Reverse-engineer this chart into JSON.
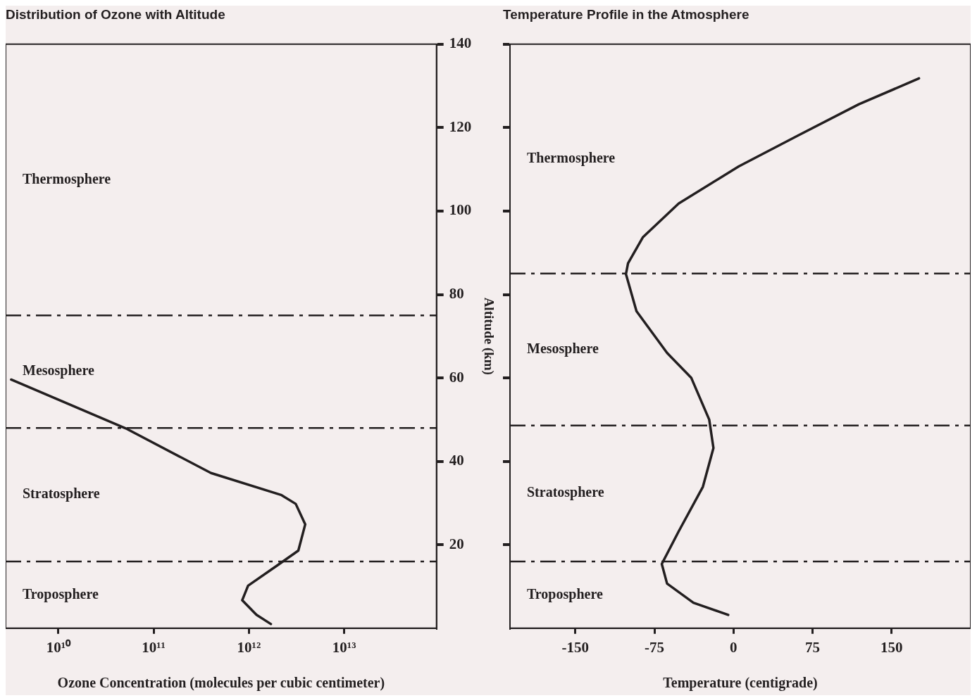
{
  "chart_data": [
    {
      "type": "line",
      "title": "Distribution of Ozone with Altitude",
      "xlabel": "Ozone Concentration (molecules per cubic centimeter)",
      "ylabel": "Altitude (km)",
      "log": "x",
      "grid": false,
      "legend": false,
      "xlim": [
        2800000000.0,
        93000000000000.0
      ],
      "xticks": [
        {
          "value": 10000000000.0,
          "label": "10¹⁰"
        },
        {
          "value": 100000000000.0,
          "label": "10¹¹"
        },
        {
          "value": 1000000000000.0,
          "label": "10¹²"
        },
        {
          "value": 10000000000000.0,
          "label": "10¹³"
        }
      ],
      "ylim": [
        0,
        140
      ],
      "yticks": [
        20,
        40,
        60,
        80,
        100,
        120,
        140
      ],
      "series": [
        {
          "color": "#231f20",
          "x": [
            3200000000.0,
            51000000000.0,
            400000000000.0,
            2200000000000.0,
            3100000000000.0,
            3900000000000.0,
            3300000000000.0,
            2000000000000.0,
            980000000000.0,
            850000000000.0,
            1200000000000.0,
            1700000000000.0
          ],
          "values": [
            59.6,
            47.9,
            37.2,
            31.9,
            29.8,
            24.9,
            18.6,
            15.1,
            10.2,
            6.7,
            3.2,
            1.0
          ]
        }
      ],
      "ref_lines": [
        {
          "axis": "y",
          "value": 75,
          "line_style": "dashed"
        },
        {
          "axis": "y",
          "value": 48,
          "line_style": "dashed"
        },
        {
          "axis": "y",
          "value": 16,
          "line_style": "dashed"
        }
      ],
      "annotations": [
        "Thermosphere",
        "Mesosphere",
        "Stratosphere",
        "Troposphere"
      ]
    },
    {
      "type": "line",
      "title": "Temperature Profile in the Atmosphere",
      "xlabel": "Temperature (centigrade)",
      "tick_labels": "x",
      "grid": false,
      "legend": false,
      "xlim": [
        -212,
        225
      ],
      "xticks": [
        -150,
        -75,
        0,
        75,
        150
      ],
      "ylim": [
        0,
        140
      ],
      "yticks": [
        20,
        40,
        60,
        80,
        100,
        120,
        140
      ],
      "series": [
        {
          "color": "#231f20",
          "x": [
            176,
            119,
            62,
            5,
            -52,
            -86,
            -100,
            -102,
            -92,
            -63,
            -40,
            -23,
            -19,
            -29,
            -52,
            -68,
            -63,
            -38,
            -5
          ],
          "values": [
            131.8,
            125.6,
            118.2,
            110.7,
            101.8,
            93.7,
            87.5,
            84.9,
            76,
            66,
            60,
            50,
            43.2,
            33.9,
            23.2,
            15.4,
            10.7,
            6.1,
            3.2
          ]
        }
      ],
      "ref_lines": [
        {
          "axis": "y",
          "value": 85,
          "line_style": "dashed"
        },
        {
          "axis": "y",
          "value": 48.6,
          "line_style": "dashed"
        },
        {
          "axis": "y",
          "value": 16,
          "line_style": "dashed"
        }
      ],
      "annotations": [
        "Thermosphere",
        "Mesosphere",
        "Stratosphere",
        "Troposphere"
      ]
    }
  ]
}
